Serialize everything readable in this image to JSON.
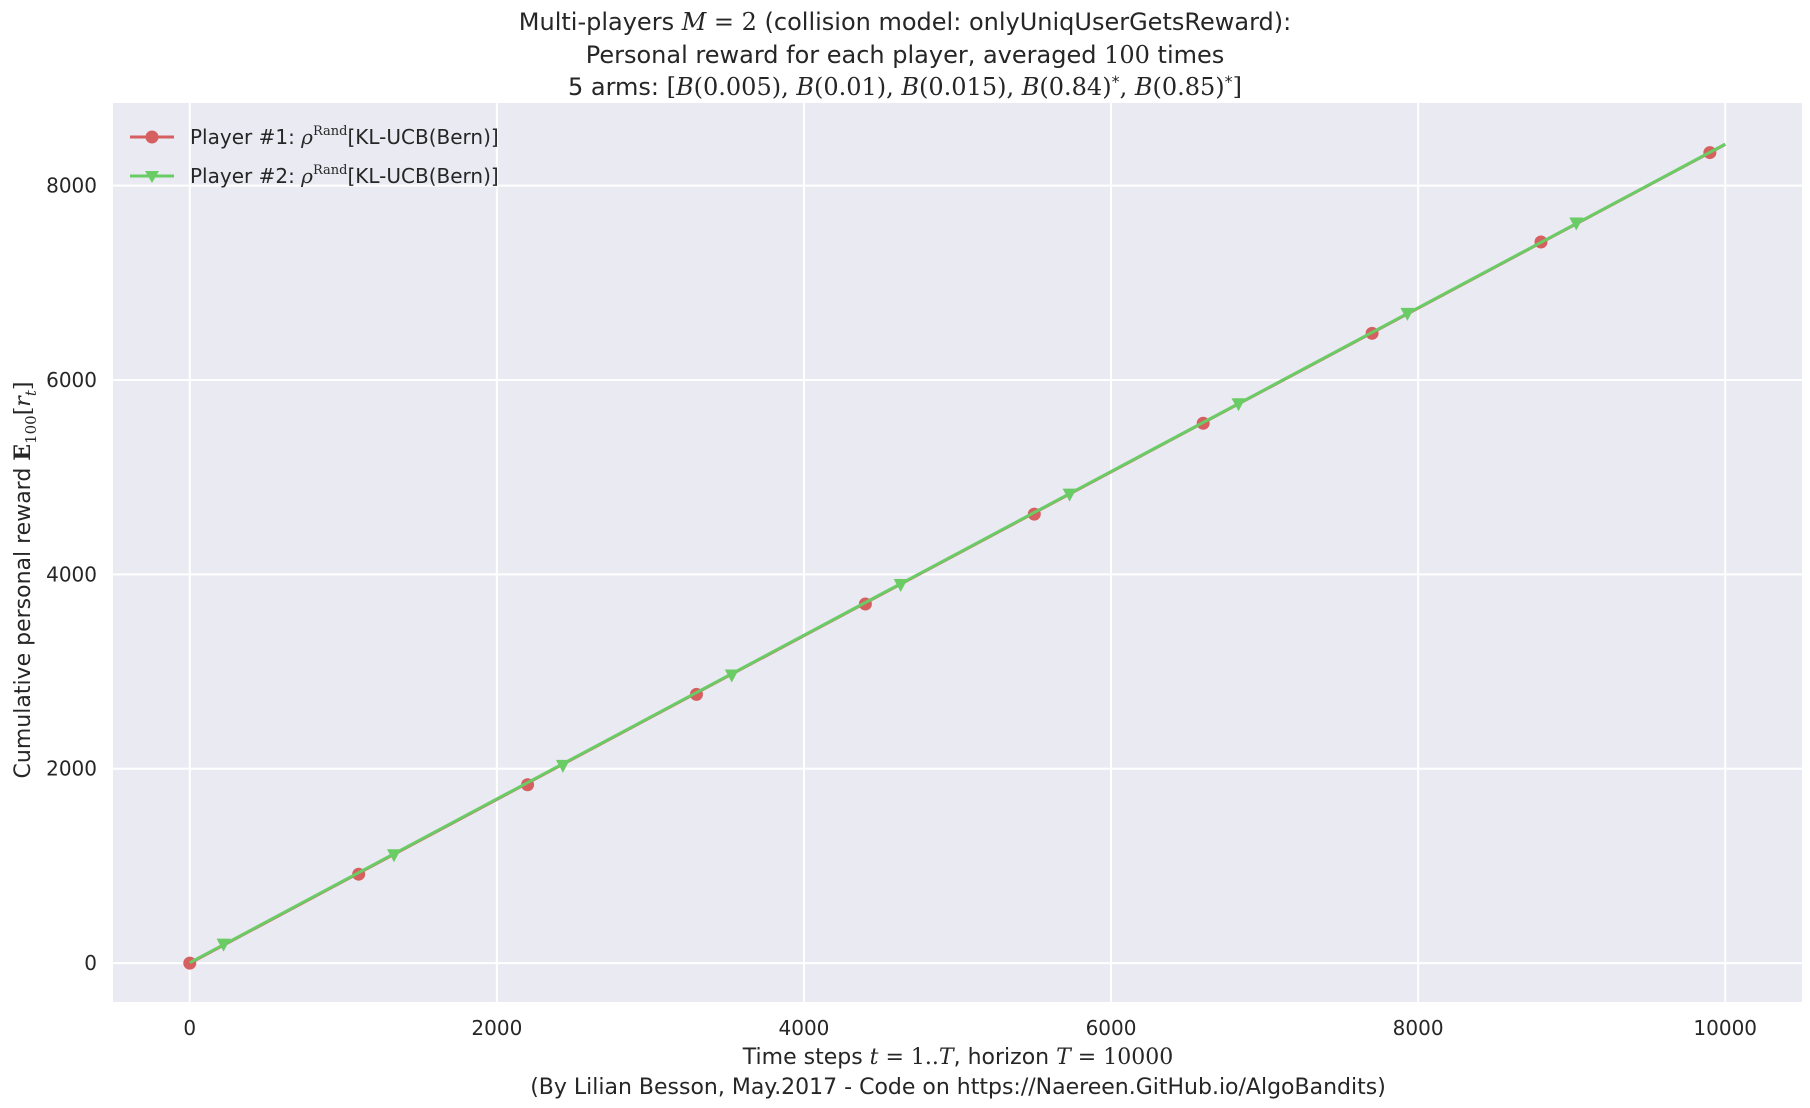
{
  "chart_data": {
    "type": "line",
    "title_lines": [
      "Multi-players M = 2 (collision model: onlyUniqUserGetsReward):",
      "Personal reward for each player, averaged 100 times",
      "5 arms: [B(0.005), B(0.01), B(0.015), B(0.84)*, B(0.85)*]"
    ],
    "xlabel": "Time steps t = 1..T, horizon T = 10000",
    "xlabel_footer": "(By Lilian Besson, May.2017 - Code on https://Naereen.GitHub.io/AlgoBandits)",
    "ylabel": "Cumulative personal reward E100[rt]",
    "xlim": [
      -500,
      10500
    ],
    "ylim": [
      -400,
      8850
    ],
    "xticks": [
      0,
      2000,
      4000,
      6000,
      8000,
      10000
    ],
    "yticks": [
      0,
      2000,
      4000,
      6000,
      8000
    ],
    "grid": true,
    "legend_position": "top-left",
    "background": "#eaeaf2",
    "series": [
      {
        "name": "Player #1: ρRand[KL-UCB(Bern)]",
        "color": "#d65f5f",
        "marker": "circle",
        "x": [
          0,
          1100,
          2200,
          3300,
          4400,
          5500,
          6600,
          7700,
          8800,
          9900
        ],
        "y": [
          0,
          915,
          1835,
          2765,
          3695,
          4620,
          5555,
          6480,
          7420,
          8340
        ]
      },
      {
        "name": "Player #2: ρRand[KL-UCB(Bern)]",
        "color": "#6acc65",
        "marker": "triangle-down",
        "x": [
          220,
          1330,
          2430,
          3530,
          4630,
          5730,
          6830,
          7930,
          9030
        ],
        "y": [
          190,
          1110,
          2030,
          2960,
          3890,
          4820,
          5750,
          6680,
          7610
        ]
      }
    ]
  }
}
